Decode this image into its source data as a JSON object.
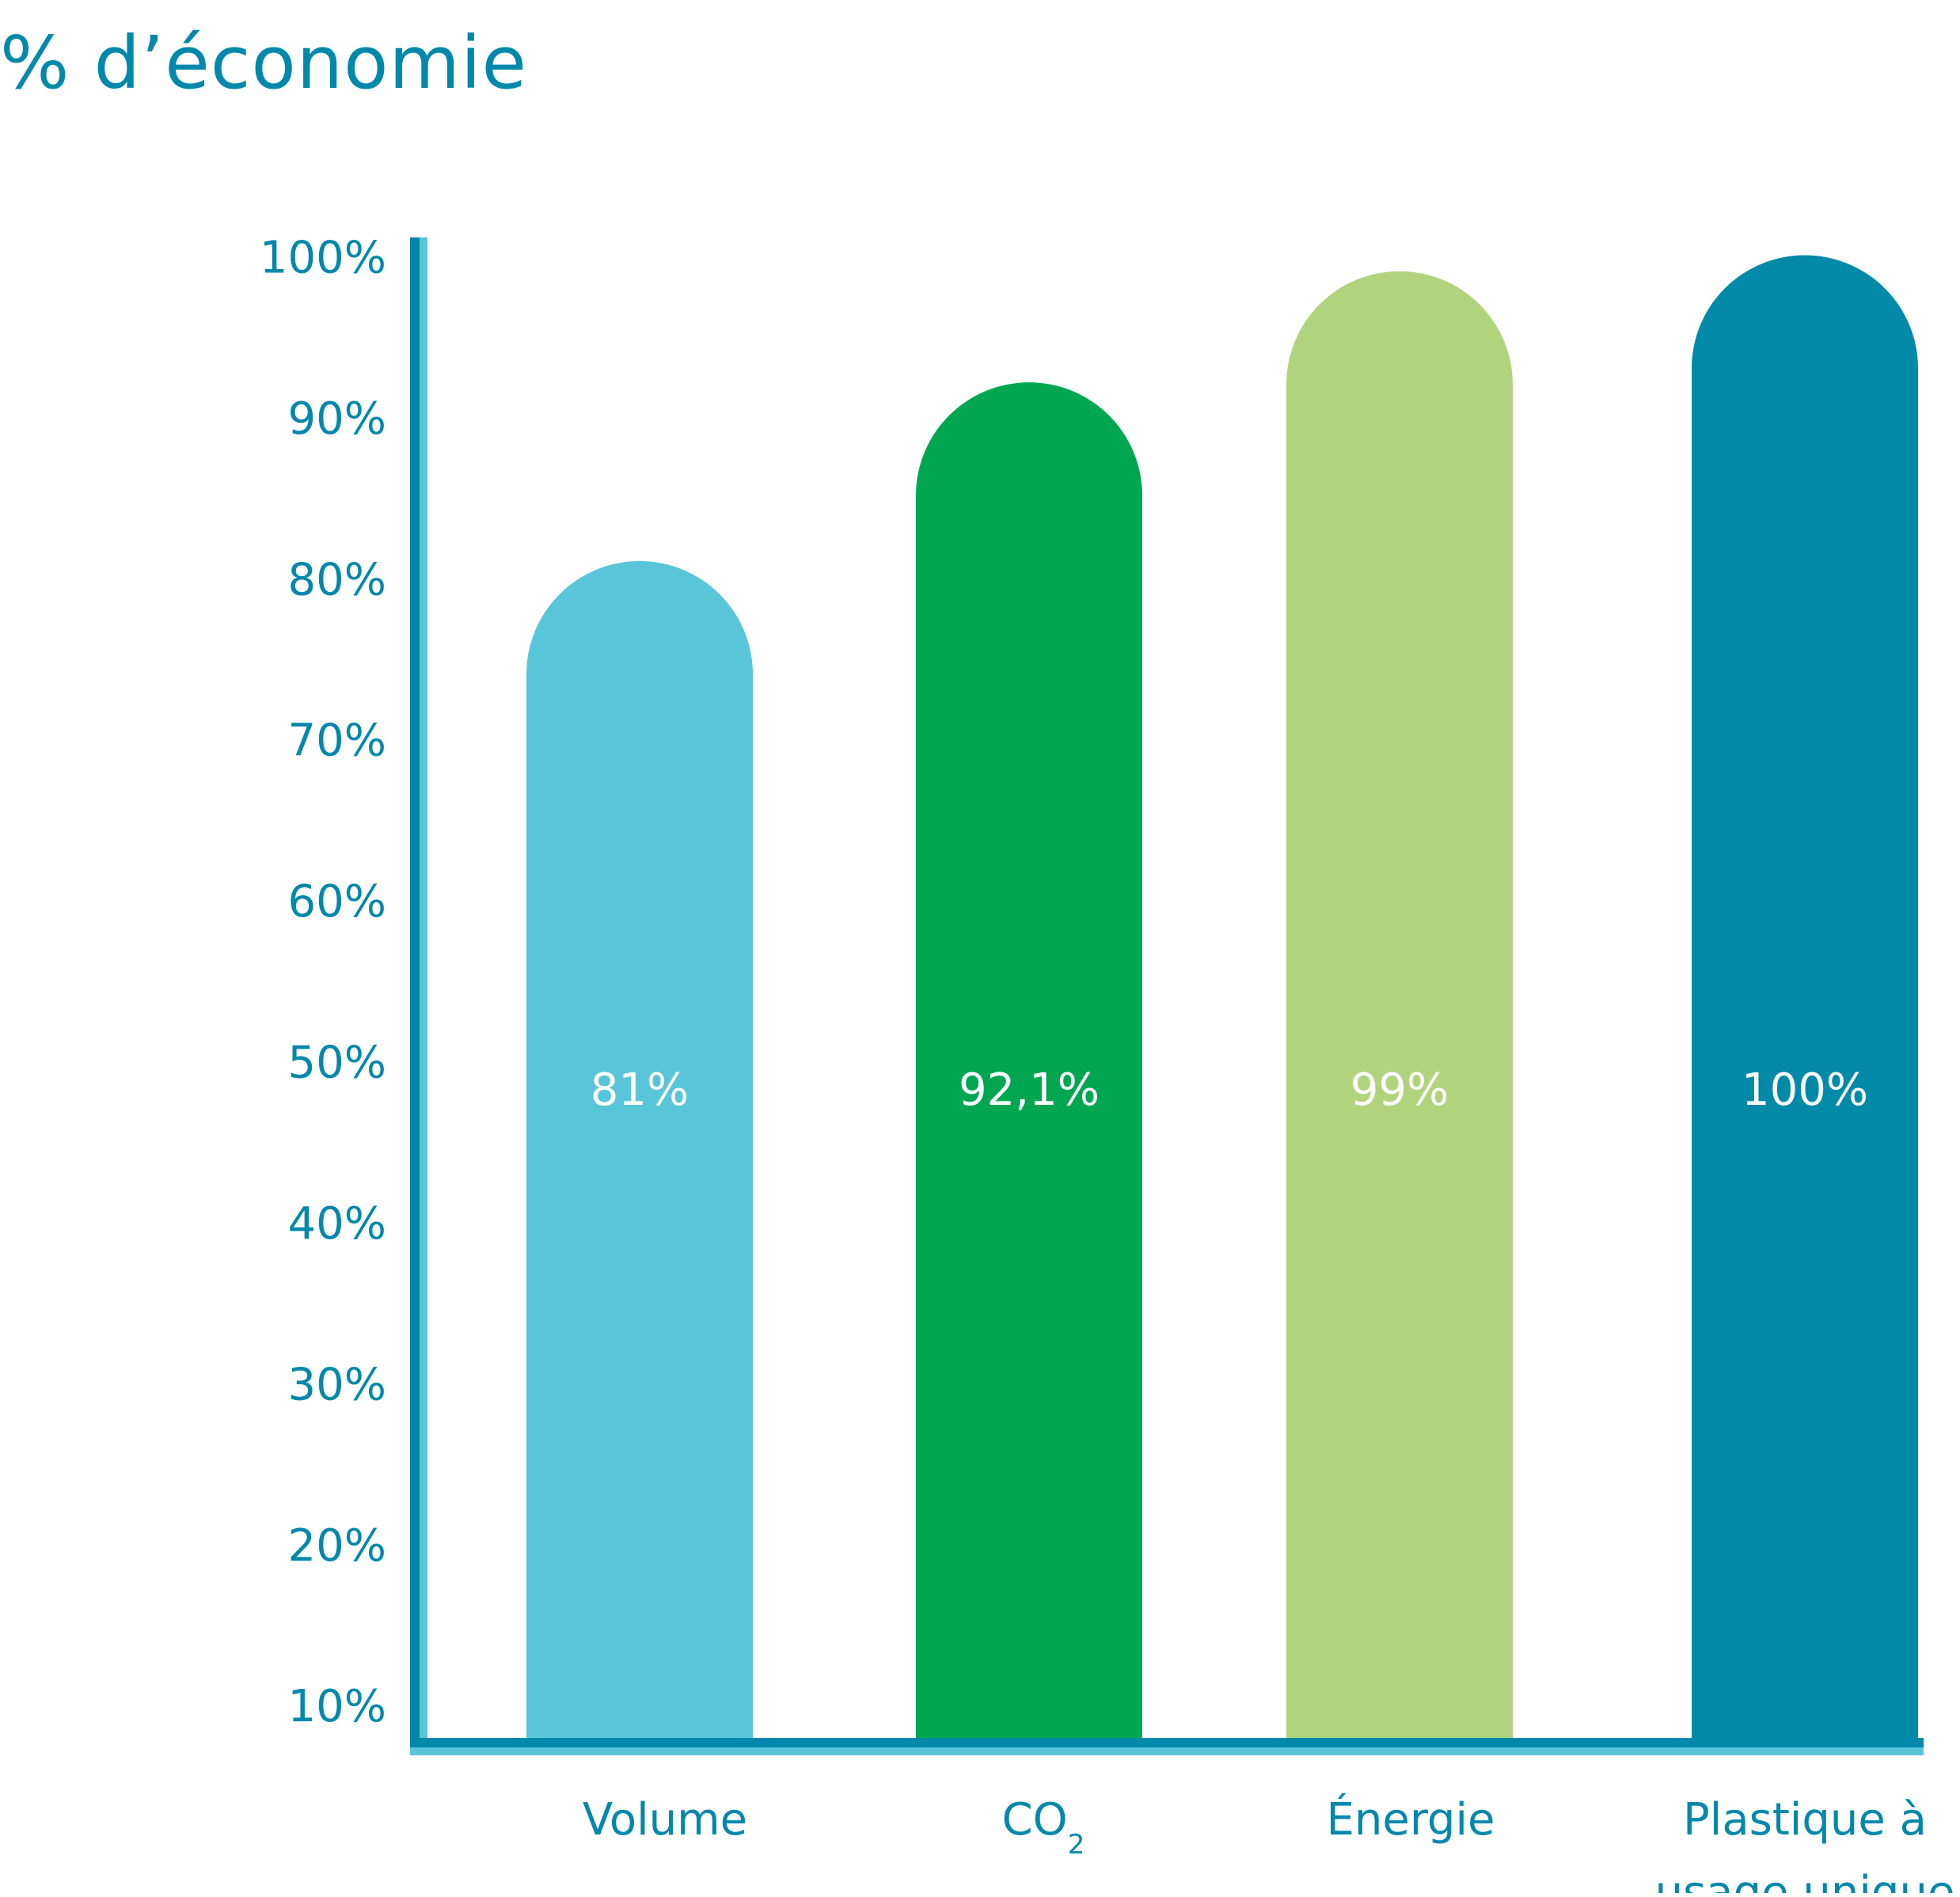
{
  "chart_data": {
    "type": "bar",
    "title": "% d’économie",
    "categories": [
      "Volume",
      "CO2",
      "Énergie",
      "Plastique à usage unique"
    ],
    "category_display": [
      {
        "main": "Volume",
        "sub": ""
      },
      {
        "main": "CO",
        "sub": "2"
      },
      {
        "main": "Énergie",
        "sub": ""
      },
      {
        "lines": [
          "Plastique à",
          "usage unique"
        ]
      }
    ],
    "values": [
      81,
      92.1,
      99,
      100
    ],
    "value_labels": [
      "81%",
      "92,1%",
      "99%",
      "100%"
    ],
    "bar_colors": [
      "#58c5d8",
      "#00a650",
      "#b0d47e",
      "#008aa8"
    ],
    "ylim": [
      7.7,
      101.3
    ],
    "yticks": [
      10,
      20,
      30,
      40,
      50,
      60,
      70,
      80,
      90,
      100
    ],
    "ytick_labels": [
      "10%",
      "20%",
      "30%",
      "40%",
      "50%",
      "60%",
      "70%",
      "80%",
      "90%",
      "100%"
    ],
    "grid": false,
    "legend": false,
    "colors": {
      "axis_dark": "#0288aa",
      "axis_light": "#58c5d8",
      "text": "#0288aa",
      "value_text": "#ffffff"
    }
  }
}
